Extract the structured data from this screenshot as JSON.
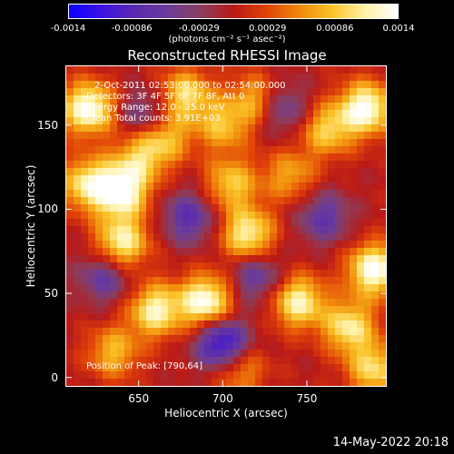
{
  "colorbar": {
    "ticks": [
      "-0.0014",
      "-0.00086",
      "-0.00029",
      "0.00029",
      "0.00086",
      "0.0014"
    ],
    "tick_values": [
      -0.0014,
      -0.00086,
      -0.00029,
      0.00029,
      0.00086,
      0.0014
    ],
    "unit_label": "(photons cm⁻² s⁻¹ asec⁻²)",
    "palette": [
      "#0a00ff",
      "#3b12e2",
      "#5a2ab0",
      "#6b3c98",
      "#8a3e5e",
      "#b81a18",
      "#e04108",
      "#f0890c",
      "#fac328",
      "#fff2a6",
      "#ffffff"
    ]
  },
  "chart_data": {
    "type": "heatmap",
    "title": "Reconstructed RHESSI Image",
    "xlabel": "Heliocentric X (arcsec)",
    "ylabel": "Heliocentric Y (arcsec)",
    "xlim": [
      607,
      797
    ],
    "ylim": [
      -5,
      185
    ],
    "x_ticks": [
      650,
      700,
      750
    ],
    "y_ticks": [
      0,
      50,
      100,
      150
    ],
    "value_range": [
      -0.0014,
      0.0014
    ],
    "grid": false,
    "bright_regions": [
      {
        "x": 620,
        "y": 160,
        "value": 0.0014
      },
      {
        "x": 620,
        "y": 115,
        "value": 0.0011
      },
      {
        "x": 640,
        "y": 110,
        "value": 0.0013
      },
      {
        "x": 640,
        "y": 80,
        "value": 0.0012
      },
      {
        "x": 650,
        "y": 130,
        "value": 0.0008
      },
      {
        "x": 665,
        "y": 143,
        "value": 0.0009
      },
      {
        "x": 678,
        "y": 168,
        "value": 0.001
      },
      {
        "x": 700,
        "y": 150,
        "value": 0.0008
      },
      {
        "x": 720,
        "y": 165,
        "value": 0.0008
      },
      {
        "x": 705,
        "y": 115,
        "value": 0.0009
      },
      {
        "x": 715,
        "y": 85,
        "value": 0.0012
      },
      {
        "x": 740,
        "y": 120,
        "value": 0.0007
      },
      {
        "x": 762,
        "y": 147,
        "value": 0.0009
      },
      {
        "x": 785,
        "y": 160,
        "value": 0.0014
      },
      {
        "x": 790,
        "y": 64,
        "value": 0.0014
      },
      {
        "x": 775,
        "y": 30,
        "value": 0.0011
      },
      {
        "x": 660,
        "y": 40,
        "value": 0.0012
      },
      {
        "x": 690,
        "y": 45,
        "value": 0.0014
      },
      {
        "x": 745,
        "y": 45,
        "value": 0.0012
      },
      {
        "x": 635,
        "y": 15,
        "value": 0.0008
      },
      {
        "x": 710,
        "y": 5,
        "value": 0.0007
      },
      {
        "x": 790,
        "y": 5,
        "value": 0.001
      }
    ],
    "dark_regions": [
      {
        "x": 700,
        "y": 20,
        "value": -0.0013
      },
      {
        "x": 655,
        "y": 155,
        "value": -0.0007
      },
      {
        "x": 735,
        "y": 160,
        "value": -0.0007
      },
      {
        "x": 630,
        "y": 60,
        "value": -0.0007
      },
      {
        "x": 760,
        "y": 95,
        "value": -0.0007
      },
      {
        "x": 680,
        "y": 95,
        "value": -0.0008
      },
      {
        "x": 720,
        "y": 60,
        "value": -0.0007
      }
    ],
    "annotations": [
      "2-Oct-2011 02:53:00.000 to 02:54:00.000",
      "Detectors: 3F 4F 5F 6F 7F 8F, Att 0",
      "Energy Range: 12.0 - 25.0 keV",
      "Clean     Total counts: 3.91E+03",
      "Position of Peak: [790,64]"
    ]
  },
  "footer": {
    "timestamp": "14-May-2022 20:18"
  }
}
